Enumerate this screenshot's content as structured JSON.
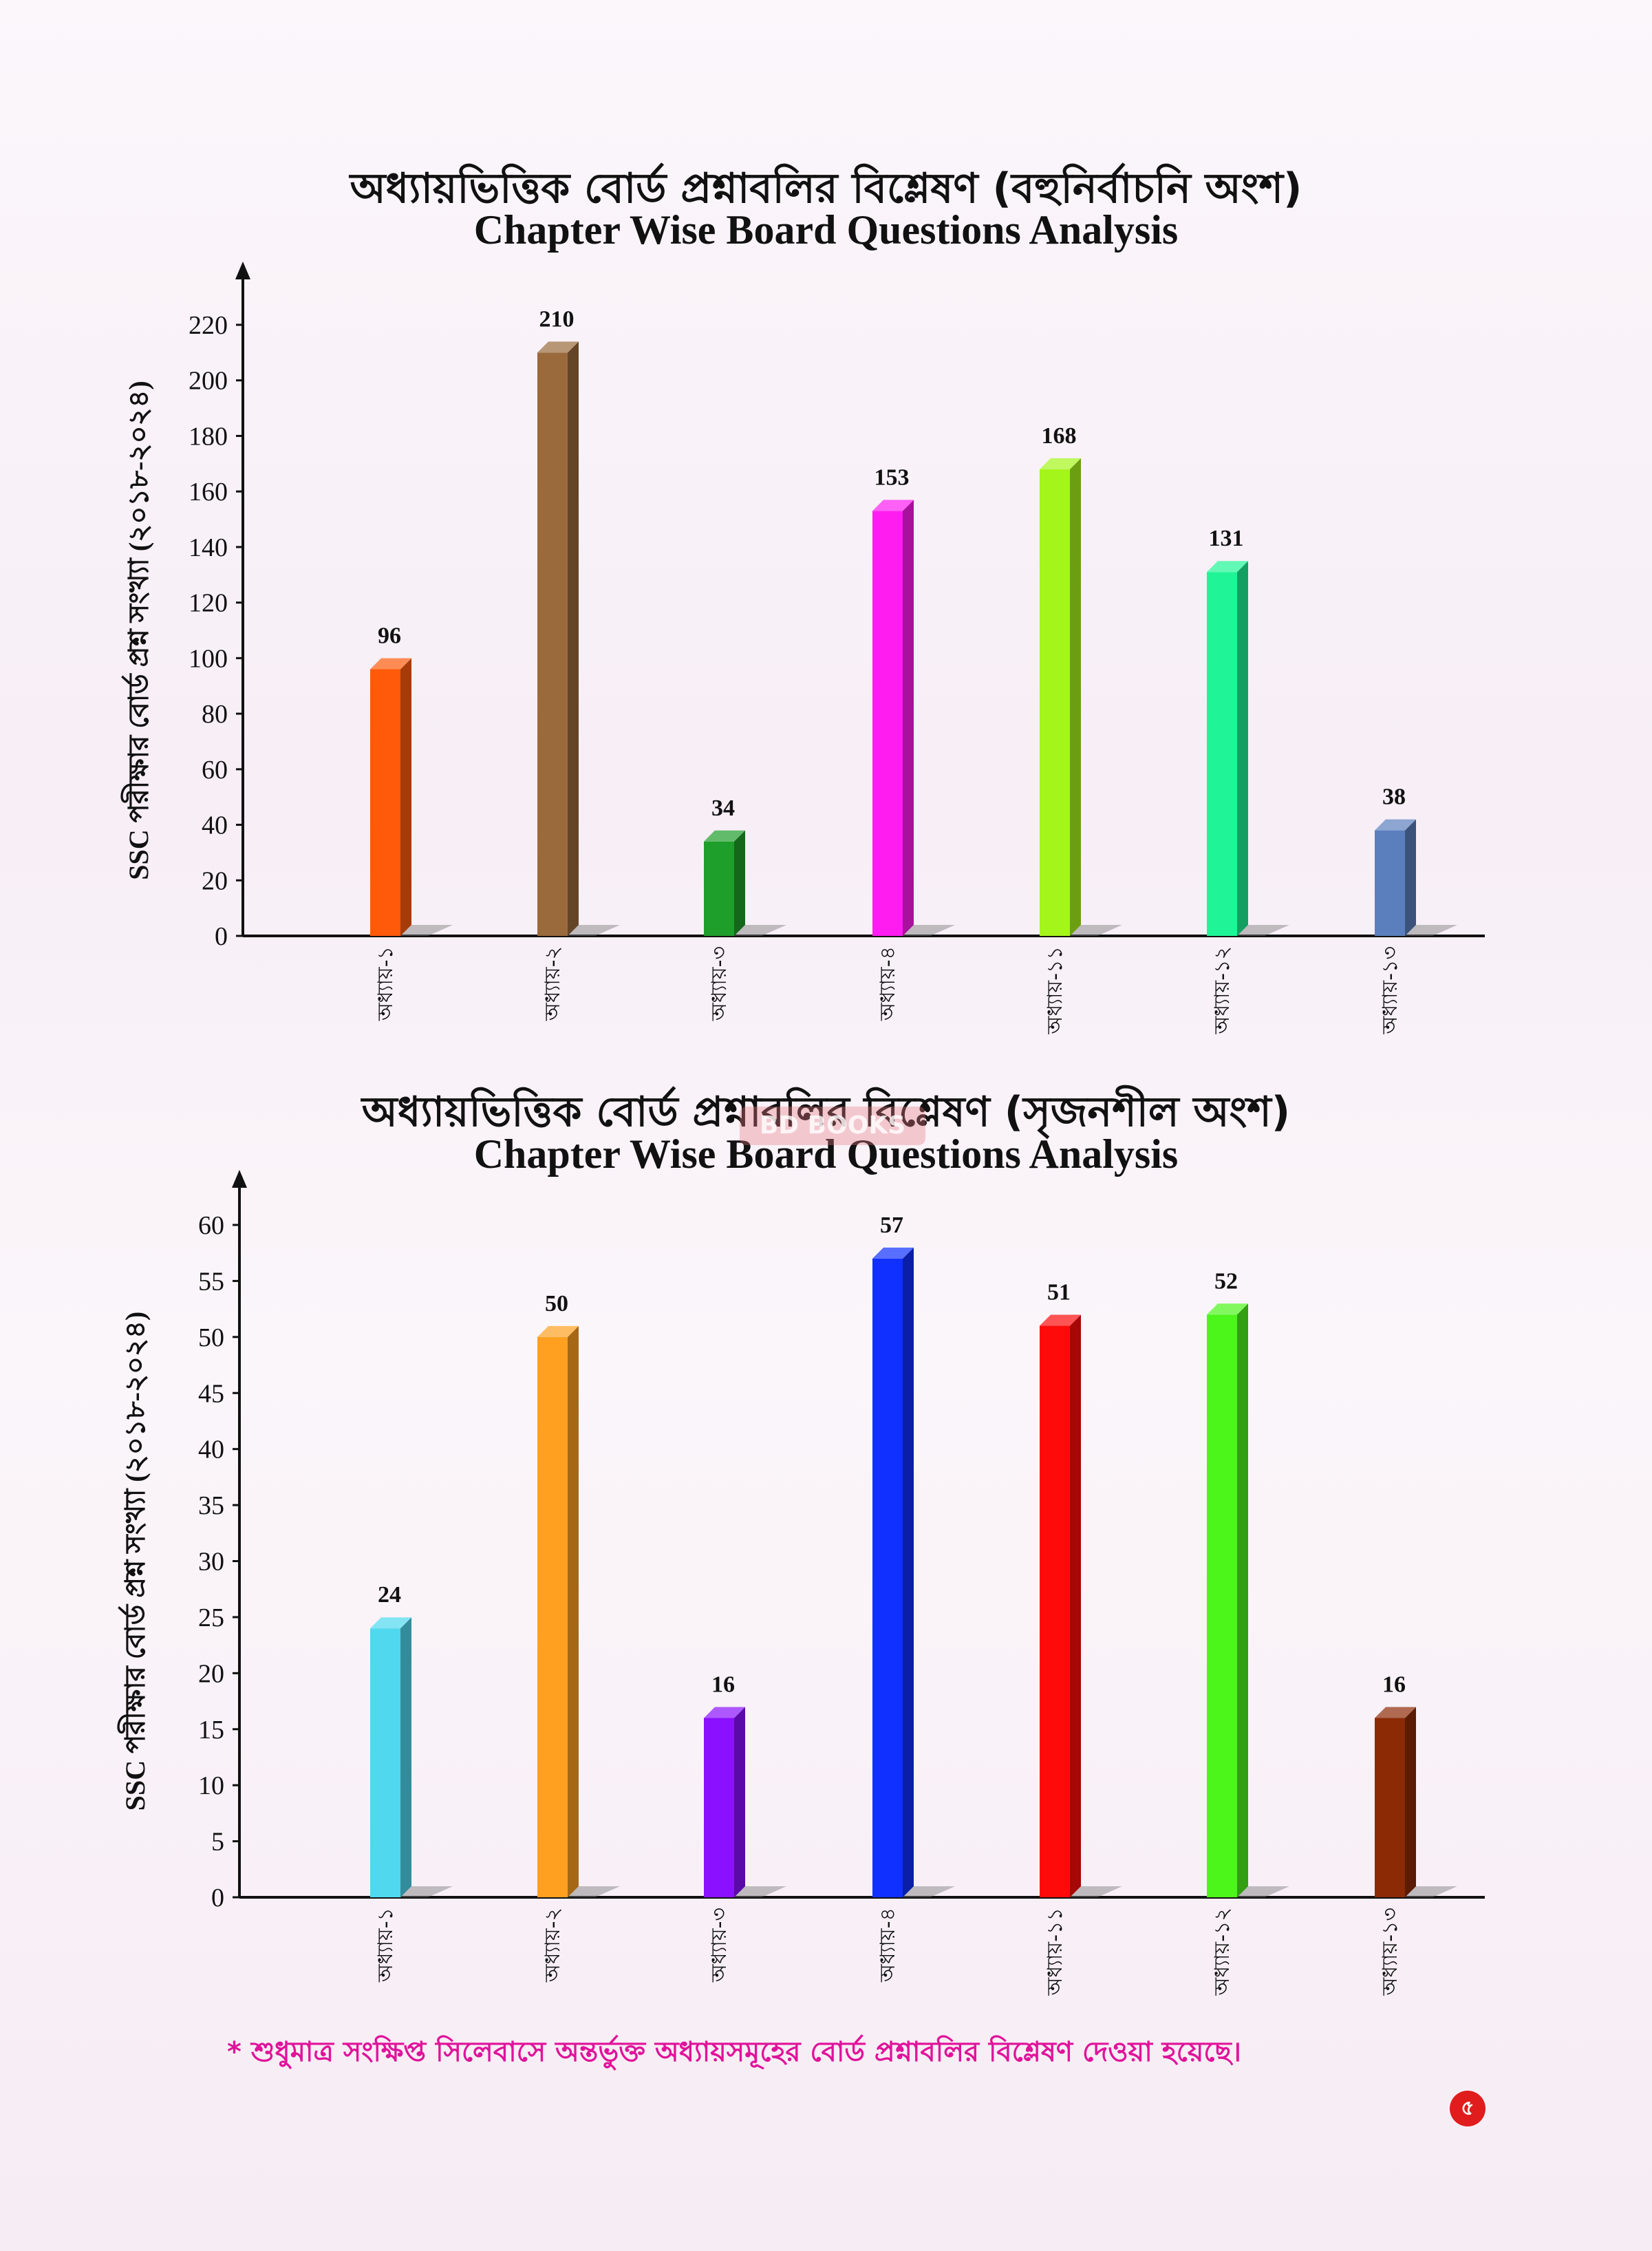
{
  "chart_data": [
    {
      "type": "bar",
      "title": "অধ্যায়ভিত্তিক বোর্ড প্রশ্নাবলির বিশ্লেষণ (বহুনির্বাচনি অংশ)",
      "subtitle": "Chapter Wise Board Questions Analysis",
      "ylabel": "SSC পরীক্ষার বোর্ড প্রশ্ন সংখ্যা (২০১৮-২০২৪)",
      "xlabel": "",
      "categories": [
        "অধ্যায়-১",
        "অধ্যায়-২",
        "অধ্যায়-৩",
        "অধ্যায়-৪",
        "অধ্যায়-১১",
        "অধ্যায়-১২",
        "অধ্যায়-১৩"
      ],
      "values": [
        96,
        210,
        34,
        153,
        168,
        131,
        38
      ],
      "colors": [
        "#ff5a0a",
        "#9a6a3c",
        "#1e9e2a",
        "#ff1cf0",
        "#a4f51a",
        "#1ff596",
        "#5b7fbd"
      ],
      "ylim": [
        0,
        220
      ],
      "yticks": [
        0,
        20,
        40,
        60,
        80,
        100,
        120,
        140,
        160,
        180,
        200,
        220
      ],
      "grid": false
    },
    {
      "type": "bar",
      "title": "অধ্যায়ভিত্তিক বোর্ড প্রশ্নাবলির বিশ্লেষণ (সৃজনশীল অংশ)",
      "subtitle": "Chapter Wise Board Questions Analysis",
      "ylabel": "SSC পরীক্ষার বোর্ড প্রশ্ন সংখ্যা (২০১৮-২০২৪)",
      "xlabel": "",
      "categories": [
        "অধ্যায়-১",
        "অধ্যায়-২",
        "অধ্যায়-৩",
        "অধ্যায়-৪",
        "অধ্যায়-১১",
        "অধ্যায়-১২",
        "অধ্যায়-১৩"
      ],
      "values": [
        24,
        50,
        16,
        57,
        51,
        52,
        16
      ],
      "colors": [
        "#4fd8ee",
        "#ffa020",
        "#8a10ff",
        "#1030ff",
        "#ff0a0a",
        "#4cf51a",
        "#8c2a06"
      ],
      "ylim": [
        0,
        60
      ],
      "yticks": [
        0,
        5,
        10,
        15,
        20,
        25,
        30,
        35,
        40,
        45,
        50,
        55,
        60
      ],
      "grid": false
    }
  ],
  "watermark": "BD BOOKS",
  "footnote": "* শুধুমাত্র সংক্ষিপ্ত সিলেবাসে অন্তর্ভুক্ত অধ্যায়সমূহের বোর্ড প্রশ্নাবলির বিশ্লেষণ দেওয়া হয়েছে।",
  "page_number": "৫"
}
